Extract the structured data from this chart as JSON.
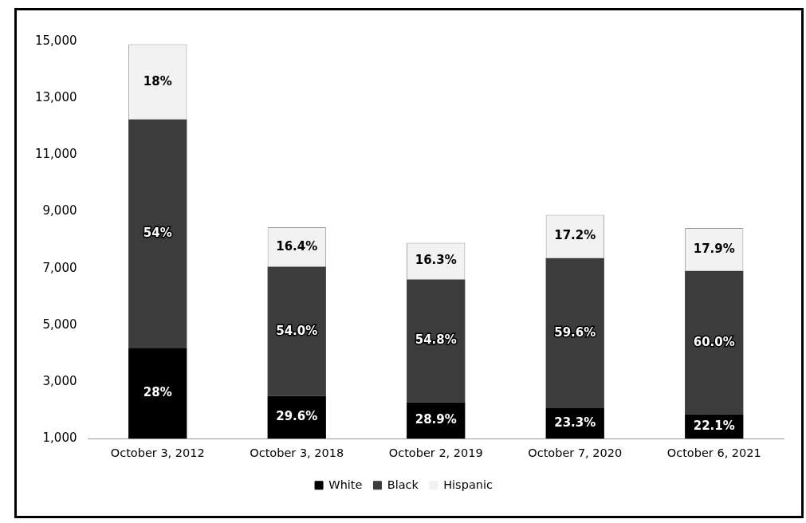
{
  "chart_data": {
    "type": "bar",
    "stacked": true,
    "categories": [
      "October 3, 2012",
      "October 3, 2018",
      "October 2, 2019",
      "October 7, 2020",
      "October 6, 2021"
    ],
    "series": [
      {
        "name": "White",
        "color": "#000000",
        "values": [
          4200,
          2500,
          2280,
          2070,
          1860
        ]
      },
      {
        "name": "Black",
        "color": "#3c3c3c",
        "values": [
          8050,
          4560,
          4330,
          5290,
          5050
        ]
      },
      {
        "name": "Hispanic",
        "color": "#f2f2f2",
        "values": [
          2650,
          1390,
          1290,
          1530,
          1510
        ]
      }
    ],
    "annotations": [
      "28%",
      "54%",
      "18%",
      "29.6%",
      "54.0%",
      "16.4%",
      "28.9%",
      "54.8%",
      "16.3%",
      "23.3%",
      "59.6%",
      "17.2%",
      "22.1%",
      "60.0%",
      "17.9%"
    ],
    "ylim": [
      1000,
      15000
    ],
    "yticks": [
      {
        "value": 1000,
        "label": "1,000"
      },
      {
        "value": 3000,
        "label": "3,000"
      },
      {
        "value": 5000,
        "label": "5,000"
      },
      {
        "value": 7000,
        "label": "7,000"
      },
      {
        "value": 9000,
        "label": "9,000"
      },
      {
        "value": 11000,
        "label": "11,000"
      },
      {
        "value": 13000,
        "label": "13,000"
      },
      {
        "value": 15000,
        "label": "15,000"
      }
    ],
    "grid": false,
    "legend": "bottom"
  }
}
